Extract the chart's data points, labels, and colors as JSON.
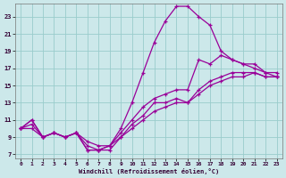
{
  "xlabel": "Windchill (Refroidissement éolien,°C)",
  "xlim": [
    -0.5,
    23.5
  ],
  "ylim": [
    6.5,
    24.5
  ],
  "xticks": [
    0,
    1,
    2,
    3,
    4,
    5,
    6,
    7,
    8,
    9,
    10,
    11,
    12,
    13,
    14,
    15,
    16,
    17,
    18,
    19,
    20,
    21,
    22,
    23
  ],
  "yticks": [
    7,
    9,
    11,
    13,
    15,
    17,
    19,
    21,
    23
  ],
  "line_color": "#990099",
  "bg_color": "#cce8ea",
  "grid_color": "#99cccc",
  "line_bottom1_x": [
    0,
    1,
    2,
    3,
    4,
    5,
    6,
    7,
    8,
    9,
    10,
    11,
    12,
    13,
    14,
    15,
    16,
    17,
    18,
    19,
    20,
    21,
    22,
    23
  ],
  "line_bottom1_y": [
    10,
    10,
    9,
    9.5,
    9,
    9.5,
    8.5,
    8,
    8,
    9,
    10,
    11,
    12,
    12.5,
    13,
    13,
    14,
    15,
    15.5,
    16,
    16,
    16.5,
    16,
    16
  ],
  "line_bottom2_x": [
    0,
    1,
    2,
    3,
    4,
    5,
    6,
    7,
    8,
    9,
    10,
    11,
    12,
    13,
    14,
    15,
    16,
    17,
    18,
    19,
    20,
    21,
    22,
    23
  ],
  "line_bottom2_y": [
    10,
    10.5,
    9,
    9.5,
    9,
    9.5,
    8,
    7.5,
    7.5,
    9,
    10.5,
    11.5,
    13,
    13,
    13.5,
    13,
    14.5,
    15.5,
    16,
    16.5,
    16.5,
    16.5,
    16,
    16
  ],
  "line_mid_x": [
    0,
    1,
    2,
    3,
    4,
    5,
    6,
    7,
    8,
    9,
    10,
    11,
    12,
    13,
    14,
    15,
    16,
    17,
    18,
    19,
    20,
    21,
    22,
    23
  ],
  "line_mid_y": [
    10,
    11,
    9,
    9.5,
    9,
    9.5,
    7.5,
    7.5,
    8,
    9.5,
    11,
    12.5,
    13.5,
    14,
    14.5,
    14.5,
    18,
    17.5,
    18.5,
    18,
    17.5,
    17.5,
    16.5,
    16.5
  ],
  "line_top_x": [
    0,
    1,
    2,
    3,
    4,
    5,
    6,
    7,
    8,
    9,
    10,
    11,
    12,
    13,
    14,
    15,
    16,
    17,
    18,
    19,
    20,
    21,
    22,
    23
  ],
  "line_top_y": [
    10,
    11,
    9,
    9.5,
    9,
    9.5,
    7.5,
    7.5,
    8,
    10,
    13,
    16.5,
    20,
    22.5,
    24.2,
    24.2,
    23,
    22,
    19,
    18,
    17.5,
    17,
    16.5,
    16
  ]
}
